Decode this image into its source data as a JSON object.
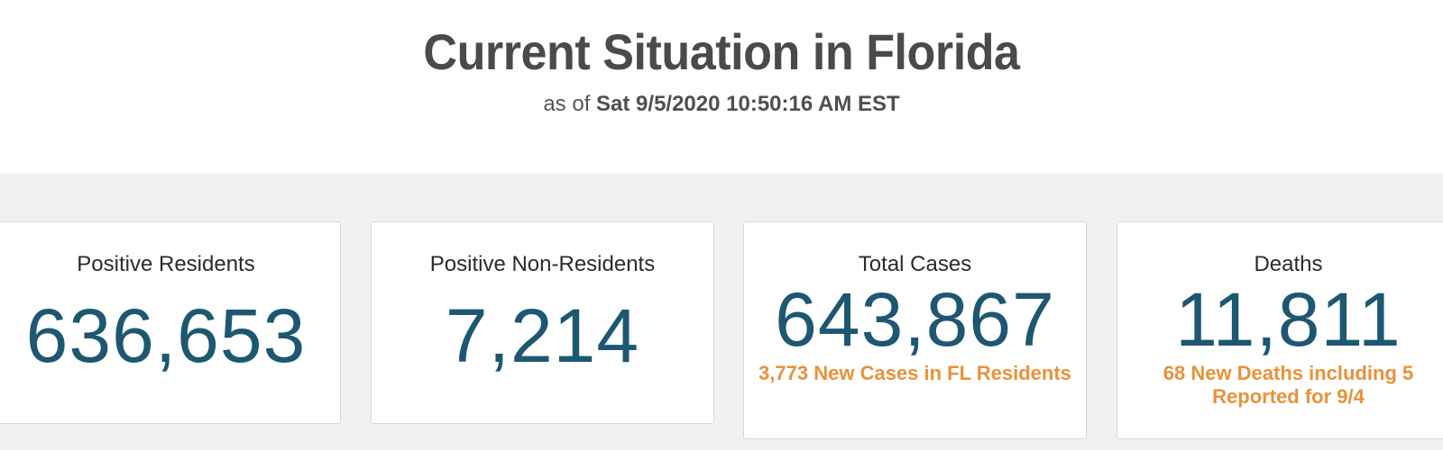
{
  "header": {
    "title": "Current Situation in Florida",
    "subtitle_prefix": "as of ",
    "timestamp": "Sat 9/5/2020 10:50:16 AM EST"
  },
  "cards": [
    {
      "label": "Positive Residents",
      "value": "636,653",
      "note": ""
    },
    {
      "label": "Positive Non-Residents",
      "value": "7,214",
      "note": ""
    },
    {
      "label": "Total Cases",
      "value": "643,867",
      "note": "3,773 New Cases in FL Residents"
    },
    {
      "label": "Deaths",
      "value": "11,811",
      "note": "68 New Deaths including 5 Reported for 9/4"
    }
  ],
  "colors": {
    "value": "#1d5772",
    "note": "#e8923a",
    "title": "#4a4a4a",
    "panel_bg": "#f0f1f3"
  }
}
